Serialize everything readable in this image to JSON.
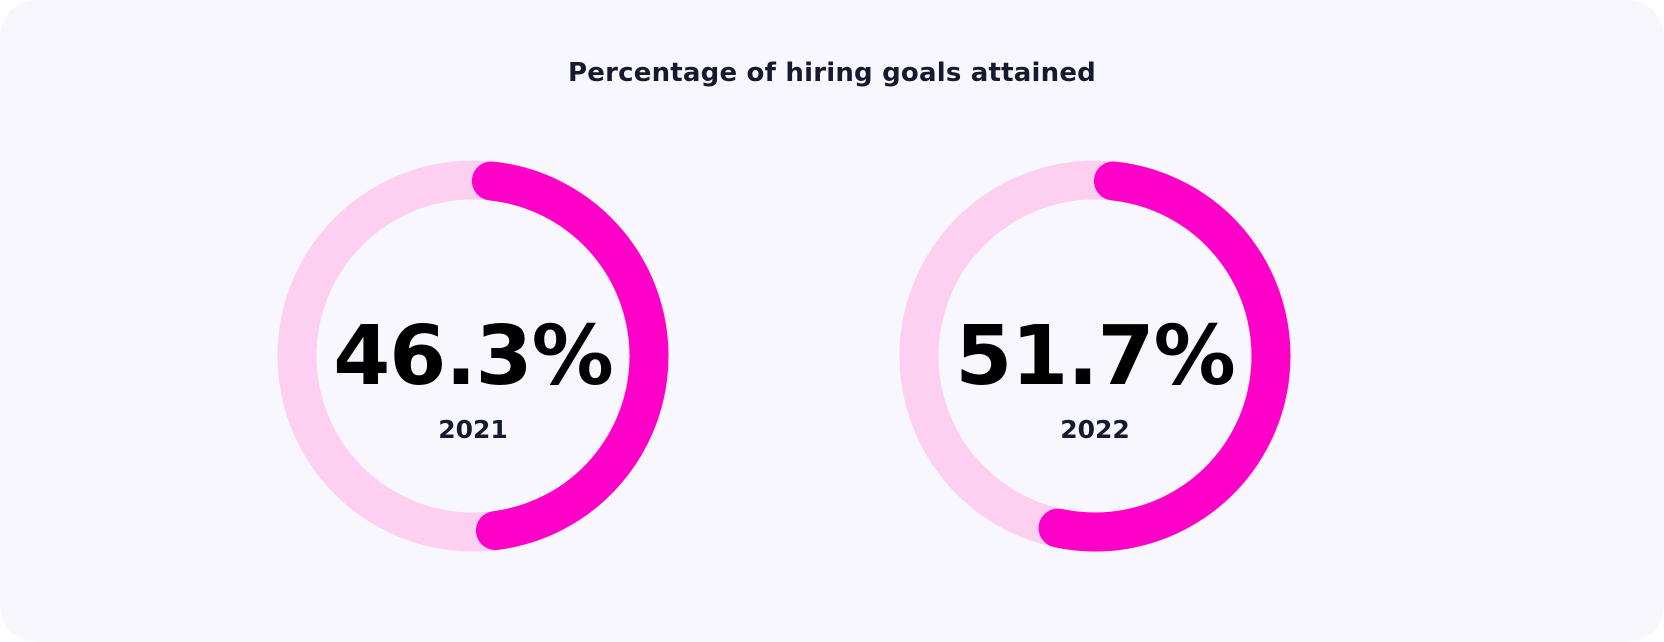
{
  "chart_data": {
    "type": "donut",
    "title": "Percentage of hiring goals attained",
    "series": [
      {
        "label": "2021",
        "value": 46.3,
        "display": "46.3%"
      },
      {
        "label": "2022",
        "value": 51.7,
        "display": "51.7%"
      }
    ],
    "max": 100,
    "colors": {
      "fill": "#ff00c8",
      "track": "#fdd0f1",
      "background": "#f8f7fd"
    }
  }
}
